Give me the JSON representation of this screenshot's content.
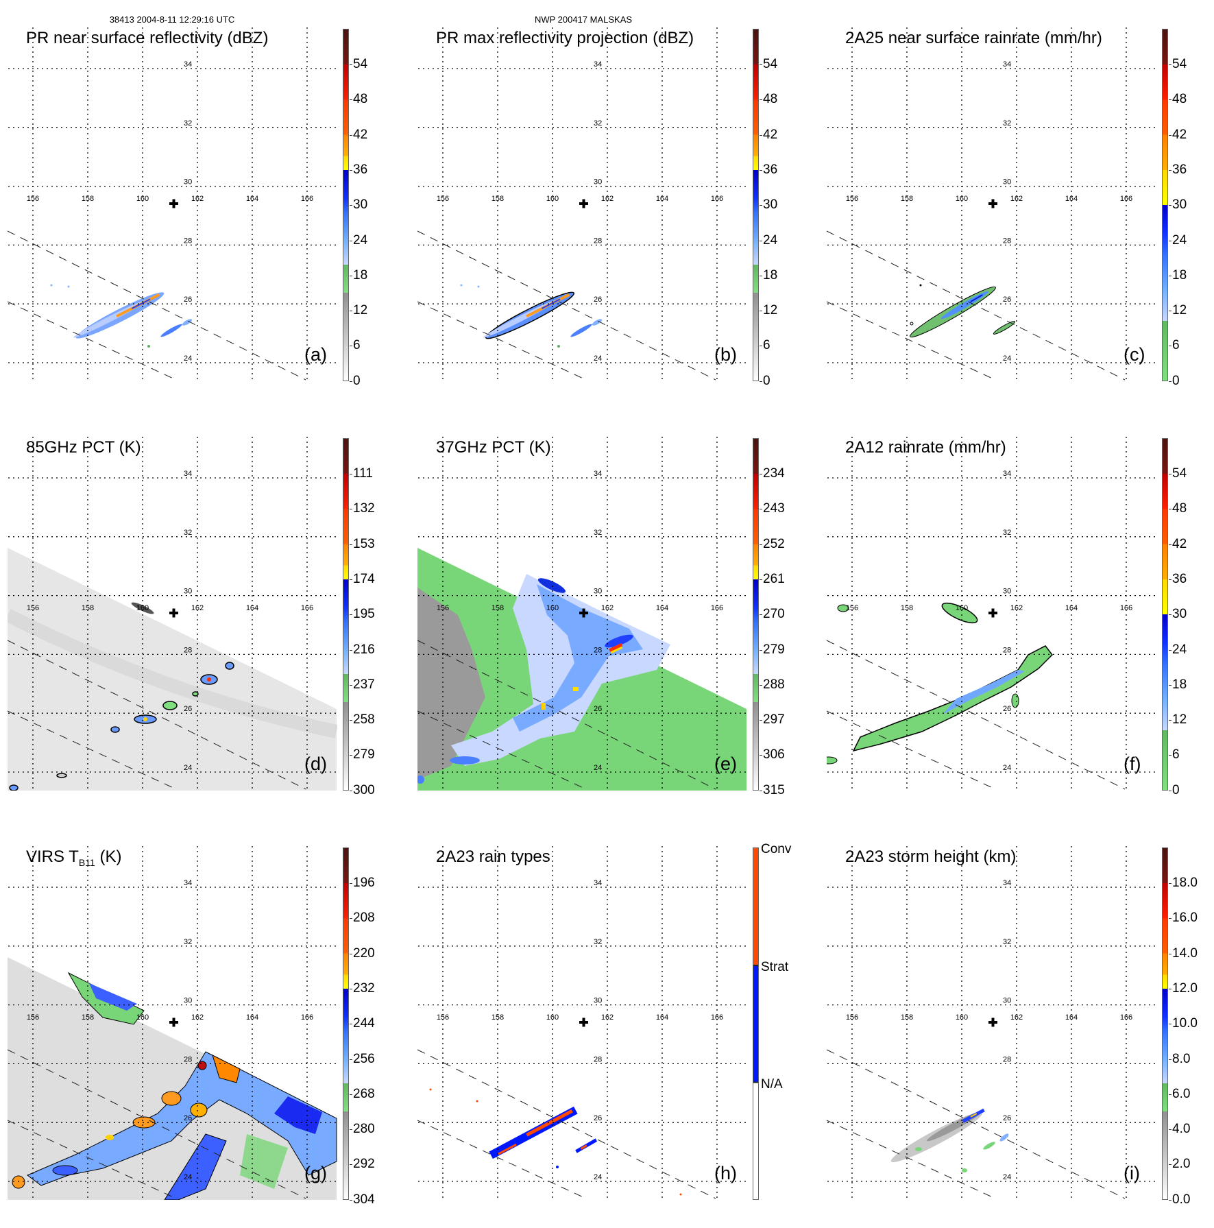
{
  "header": {
    "left": "38413 2004-8-11 12:29:16 UTC",
    "center": "NWP 200417 MALSKAS"
  },
  "axes": {
    "lon_labels": [
      "156",
      "158",
      "160",
      "162",
      "164",
      "166"
    ],
    "lat_labels": [
      "34",
      "32",
      "30",
      "28",
      "26",
      "24"
    ]
  },
  "panels": [
    {
      "id": "a",
      "title": "PR near surface reflectivity (dBZ)",
      "label": "(a)",
      "colorbar": [
        "54",
        "48",
        "42",
        "36",
        "30",
        "24",
        "18",
        "12",
        "6",
        "0"
      ]
    },
    {
      "id": "b",
      "title": "PR max reflectivity projection (dBZ)",
      "label": "(b)",
      "colorbar": [
        "54",
        "48",
        "42",
        "36",
        "30",
        "24",
        "18",
        "12",
        "6",
        "0"
      ]
    },
    {
      "id": "c",
      "title": "2A25 near surface rainrate (mm/hr)",
      "label": "(c)",
      "colorbar": [
        "54",
        "48",
        "42",
        "36",
        "30",
        "24",
        "18",
        "12",
        "6",
        "0"
      ]
    },
    {
      "id": "d",
      "title": "85GHz PCT (K)",
      "label": "(d)",
      "colorbar": [
        "111",
        "132",
        "153",
        "174",
        "195",
        "216",
        "237",
        "258",
        "279",
        "300"
      ]
    },
    {
      "id": "e",
      "title": "37GHz PCT (K)",
      "label": "(e)",
      "colorbar": [
        "234",
        "243",
        "252",
        "261",
        "270",
        "279",
        "288",
        "297",
        "306",
        "315"
      ]
    },
    {
      "id": "f",
      "title": "2A12 rainrate (mm/hr)",
      "label": "(f)",
      "colorbar": [
        "54",
        "48",
        "42",
        "36",
        "30",
        "24",
        "18",
        "12",
        "6",
        "0"
      ]
    },
    {
      "id": "g",
      "title": "VIRS T",
      "title_sub": "B11",
      "title_suffix": " (K)",
      "label": "(g)",
      "colorbar": [
        "196",
        "208",
        "220",
        "232",
        "244",
        "256",
        "268",
        "280",
        "292",
        "304"
      ]
    },
    {
      "id": "h",
      "title": "2A23 rain types",
      "label": "(h)",
      "colorbar": [
        "Conv",
        "Strat",
        "N/A"
      ]
    },
    {
      "id": "i",
      "title": "2A23 storm height (km)",
      "label": "(i)",
      "colorbar": [
        "18.0",
        "16.0",
        "14.0",
        "12.0",
        "10.0",
        "8.0",
        "6.0",
        "4.0",
        "2.0",
        "0.0"
      ]
    }
  ],
  "colors": {
    "conv": "#ff4a00",
    "strat": "#0018ff",
    "grid": "#000000"
  }
}
